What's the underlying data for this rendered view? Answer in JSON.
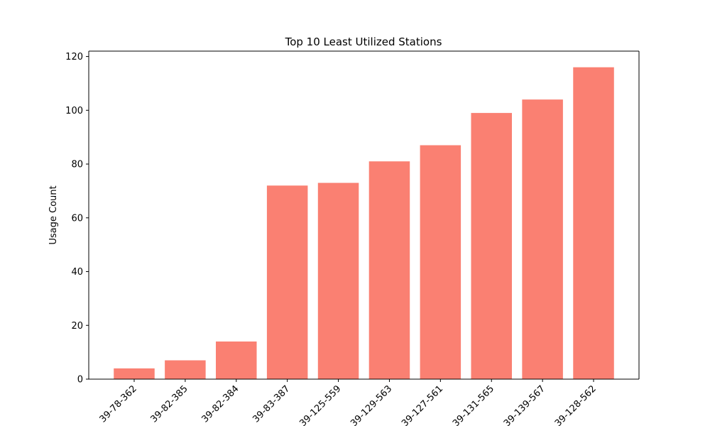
{
  "chart_data": {
    "type": "bar",
    "title": "Top 10 Least Utilized Stations",
    "xlabel": "",
    "ylabel": "Usage Count",
    "categories": [
      "39-78-362",
      "39-82-385",
      "39-82-384",
      "39-83-387",
      "39-125-559",
      "39-129-563",
      "39-127-561",
      "39-131-565",
      "39-139-567",
      "39-128-562"
    ],
    "values": [
      4,
      7,
      14,
      72,
      73,
      81,
      87,
      99,
      104,
      116
    ],
    "ylim": [
      0,
      122
    ],
    "yticks": [
      0,
      20,
      40,
      60,
      80,
      100,
      120
    ],
    "grid": false,
    "legend": "none",
    "colors": {
      "bar": "#fa8072",
      "axis": "#000000",
      "text": "#000000"
    }
  }
}
